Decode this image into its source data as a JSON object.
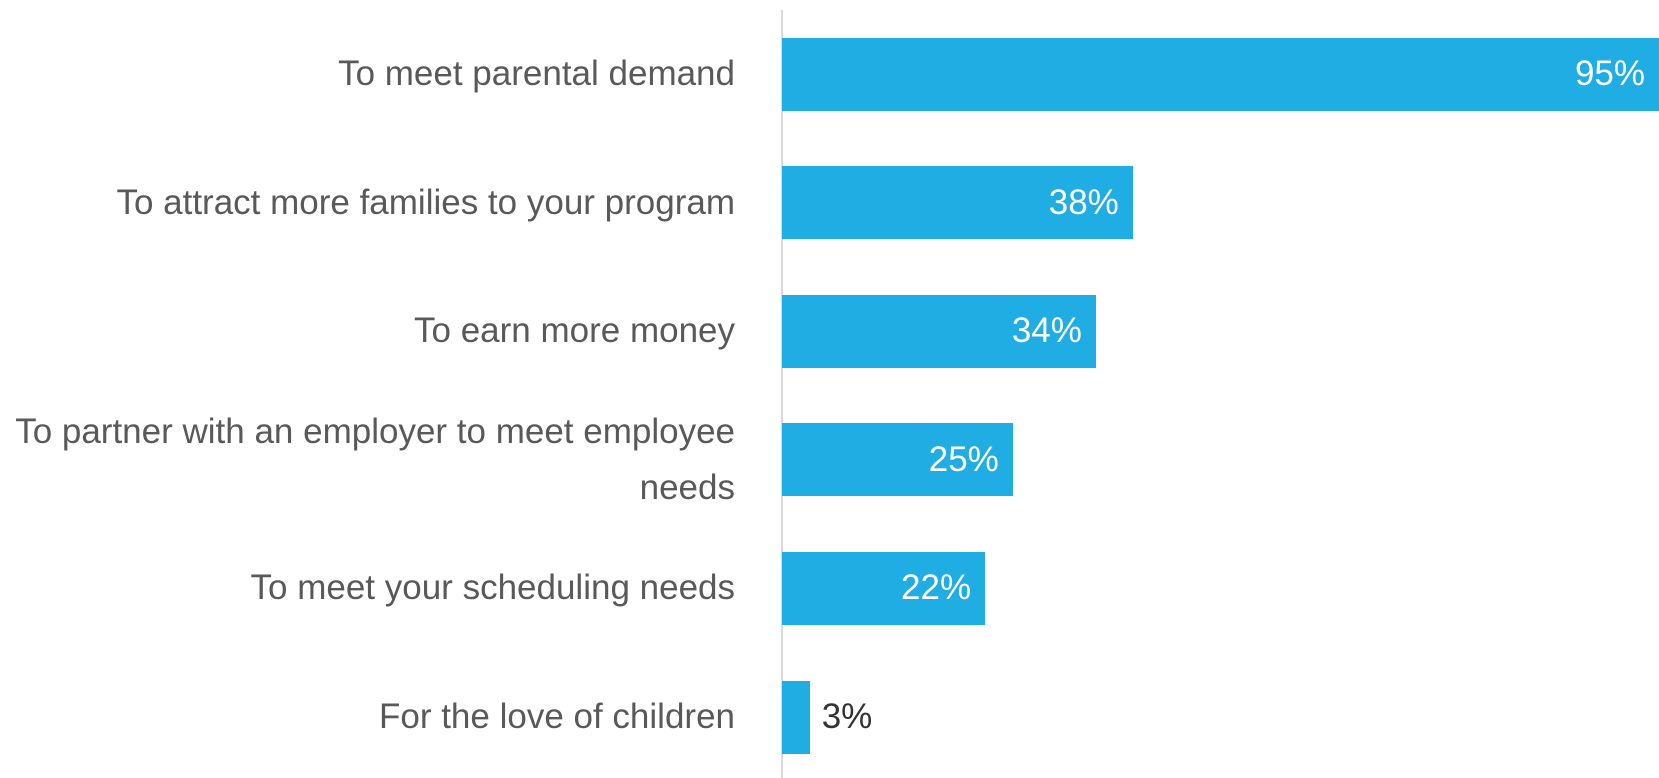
{
  "chart_data": {
    "type": "barh",
    "categories": [
      "To meet parental demand",
      "To attract more families to your program",
      "To earn more money",
      "To partner with an employer to meet employee needs",
      "To meet your scheduling needs",
      "For the love of children"
    ],
    "values": [
      95,
      38,
      34,
      25,
      22,
      3
    ],
    "value_labels": [
      "95%",
      "38%",
      "34%",
      "25%",
      "22%",
      "3%"
    ],
    "color": "#1fade4",
    "xlim": [
      0,
      95
    ]
  }
}
